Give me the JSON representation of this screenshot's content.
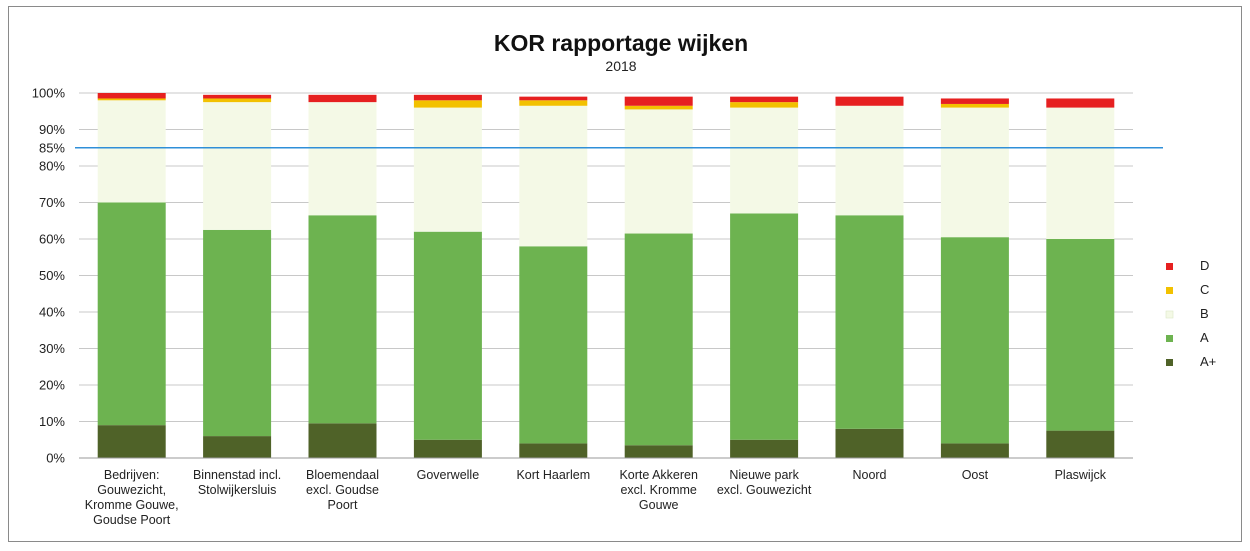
{
  "chart_data": {
    "type": "bar",
    "stacked": true,
    "title": "KOR rapportage wijken",
    "subtitle": "2018",
    "categories": [
      [
        "Bedrijven:",
        "Gouwezicht,",
        "Kromme Gouwe,",
        "Goudse Poort"
      ],
      [
        "Binnenstad incl.",
        "Stolwijkersluis"
      ],
      [
        "Bloemendaal",
        "excl. Goudse",
        "Poort"
      ],
      [
        "Goverwelle"
      ],
      [
        "Kort Haarlem"
      ],
      [
        "Korte Akkeren",
        "excl. Kromme",
        "Gouwe"
      ],
      [
        "Nieuwe park",
        "excl. Gouwezicht"
      ],
      [
        "Noord"
      ],
      [
        "Oost"
      ],
      [
        "Plaswijck"
      ]
    ],
    "series": [
      {
        "name": "A+",
        "color": "#4f6228",
        "values": [
          9,
          6,
          9.5,
          5,
          4,
          3.5,
          5,
          8,
          4,
          7.5
        ]
      },
      {
        "name": "A",
        "color": "#6db350",
        "values": [
          61,
          56.5,
          57,
          57,
          54,
          58,
          62,
          58.5,
          56.5,
          52.5
        ]
      },
      {
        "name": "B",
        "color": "#f4f9e6",
        "values": [
          28,
          35,
          31,
          34,
          38.5,
          34,
          29,
          30,
          35.5,
          36
        ]
      },
      {
        "name": "C",
        "color": "#f2c100",
        "values": [
          0.5,
          1,
          0,
          2,
          1.5,
          1,
          1.5,
          0,
          1,
          0
        ]
      },
      {
        "name": "D",
        "color": "#e62020",
        "values": [
          1.5,
          1,
          2,
          1.5,
          1,
          2.5,
          1.5,
          2.5,
          1.5,
          2.5
        ]
      }
    ],
    "y_ticks": [
      "0%",
      "10%",
      "20%",
      "30%",
      "40%",
      "50%",
      "60%",
      "70%",
      "80%",
      "85%",
      "90%",
      "100%"
    ],
    "ylim": [
      0,
      100
    ],
    "reference_line": {
      "value": 85,
      "color": "#2f8fd8"
    },
    "grid": true,
    "legend": {
      "placement": "right",
      "order": [
        "D",
        "C",
        "B",
        "A",
        "A+"
      ]
    }
  }
}
